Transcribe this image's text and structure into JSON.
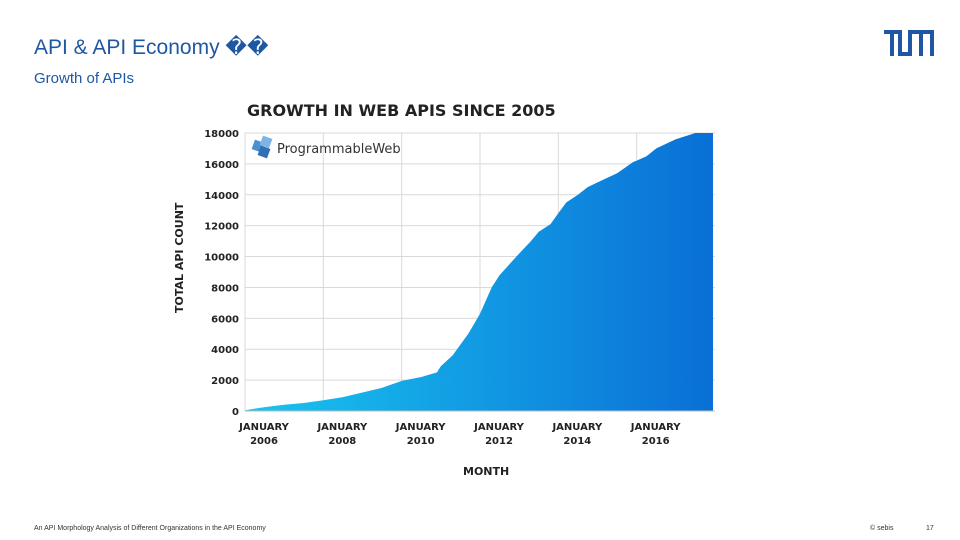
{
  "slide": {
    "title": "API & API Economy ��",
    "subtitle": "Growth of APIs",
    "footer_left": "An API Morphology Analysis of Different Organizations in the API Economy",
    "footer_credit": "© sebis",
    "page_number": "17",
    "accent_color": "#1f57a4"
  },
  "chart_data": {
    "type": "area",
    "title": "GROWTH IN WEB APIS SINCE 2005",
    "watermark": "ProgrammableWeb",
    "xlabel": "MONTH",
    "ylabel": "TOTAL API COUNT",
    "ylim": [
      0,
      18000
    ],
    "yticks": [
      "0",
      "2000",
      "4000",
      "6000",
      "8000",
      "10000",
      "12000",
      "14000",
      "16000",
      "18000"
    ],
    "xticks": [
      {
        "label": "JANUARY 2006",
        "x": 2006
      },
      {
        "label": "JANUARY 2008",
        "x": 2008
      },
      {
        "label": "JANUARY 2010",
        "x": 2010
      },
      {
        "label": "JANUARY 2012",
        "x": 2012
      },
      {
        "label": "JANUARY 2014",
        "x": 2014
      },
      {
        "label": "JANUARY 2016",
        "x": 2016
      }
    ],
    "xlim": [
      2006,
      2018
    ],
    "grid": true,
    "gradient": [
      "#19c5ef",
      "#0a6fd6"
    ],
    "x": [
      2006.0,
      2006.5,
      2007.0,
      2007.5,
      2008.0,
      2008.5,
      2009.0,
      2009.5,
      2010.0,
      2010.5,
      2010.9,
      2011.0,
      2011.3,
      2011.7,
      2012.0,
      2012.3,
      2012.5,
      2012.75,
      2013.0,
      2013.3,
      2013.5,
      2013.8,
      2014.0,
      2014.2,
      2014.5,
      2014.75,
      2015.0,
      2015.5,
      2015.9,
      2016.25,
      2016.5,
      2017.0,
      2017.5,
      2017.95
    ],
    "values": [
      50,
      250,
      400,
      520,
      700,
      900,
      1200,
      1500,
      1950,
      2200,
      2500,
      2900,
      3600,
      5000,
      6300,
      8000,
      8800,
      9500,
      10200,
      11000,
      11600,
      12100,
      12800,
      13500,
      14000,
      14500,
      14800,
      15400,
      16100,
      16500,
      17000,
      17600,
      18000,
      18000
    ]
  }
}
